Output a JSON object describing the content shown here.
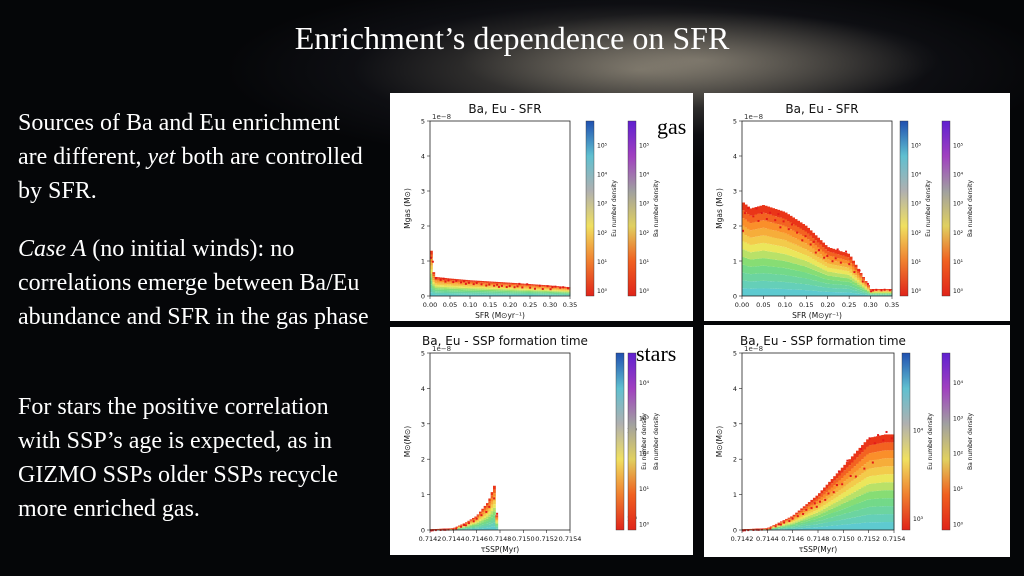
{
  "slide": {
    "title": "Enrichment’s dependence on SFR",
    "p1_a": "Sources of Ba and Eu enrichment are different, ",
    "p1_em": "yet",
    "p1_b": " both are controlled by SFR.",
    "p2_em": "Case A",
    "p2_rest": " (no initial winds): no correlations emerge between Ba/Eu abundance and SFR in the gas phase",
    "p3": "For stars the  positive correlation with SSP’s age is expected, as in GIZMO SSPs older SSPs recycle more enriched gas.",
    "label_gas": "gas",
    "label_stars": "stars"
  },
  "chart_data": [
    {
      "type": "scatter",
      "title": "Ba, Eu - SFR",
      "xlabel": "SFR (M⊙yr⁻¹)",
      "ylabel": "Mgas (M⊙)",
      "y_offset": "1e−8",
      "xlim": [
        0,
        0.35
      ],
      "ylim": [
        0,
        5
      ],
      "xticks": [
        "0.00",
        "0.05",
        "0.10",
        "0.15",
        "0.20",
        "0.25",
        "0.30",
        "0.35"
      ],
      "yticks": [
        "0",
        "1",
        "2",
        "3",
        "4",
        "5"
      ],
      "envelope": [
        [
          0,
          1.6
        ],
        [
          0.01,
          0.55
        ],
        [
          0.05,
          0.5
        ],
        [
          0.1,
          0.45
        ],
        [
          0.2,
          0.38
        ],
        [
          0.3,
          0.3
        ],
        [
          0.35,
          0.25
        ]
      ],
      "colorbars": [
        {
          "label": "Eu number density",
          "ticks": [
            "10⁰",
            "10¹",
            "10²",
            "10³",
            "10⁴",
            "10⁵"
          ]
        },
        {
          "label": "Ba number density",
          "ticks": [
            "10⁰",
            "10¹",
            "10²",
            "10³",
            "10⁴",
            "10⁵"
          ]
        }
      ]
    },
    {
      "type": "scatter",
      "title": "Ba, Eu - SFR",
      "xlabel": "SFR (M⊙yr⁻¹)",
      "ylabel": "Mgas (M⊙)",
      "y_offset": "1e−8",
      "xlim": [
        0,
        0.35
      ],
      "ylim": [
        0,
        5
      ],
      "xticks": [
        "0.00",
        "0.05",
        "0.10",
        "0.15",
        "0.20",
        "0.25",
        "0.30",
        "0.35"
      ],
      "yticks": [
        "0",
        "1",
        "2",
        "3",
        "4",
        "5"
      ],
      "envelope": [
        [
          0,
          2.7
        ],
        [
          0.02,
          2.5
        ],
        [
          0.05,
          2.6
        ],
        [
          0.1,
          2.4
        ],
        [
          0.15,
          2.0
        ],
        [
          0.2,
          1.4
        ],
        [
          0.25,
          1.2
        ],
        [
          0.3,
          0.2
        ]
      ],
      "colorbars": [
        {
          "label": "Eu number density",
          "ticks": [
            "10⁰",
            "10¹",
            "10²",
            "10³",
            "10⁴",
            "10⁵"
          ]
        },
        {
          "label": "Ba number density",
          "ticks": [
            "10⁰",
            "10¹",
            "10²",
            "10³",
            "10⁴",
            "10⁵"
          ]
        }
      ]
    },
    {
      "type": "scatter",
      "title": "Ba, Eu - SSP formation time",
      "xlabel": "τSSP(Myr)",
      "ylabel": "M⊙(M⊙)",
      "y_offset": "1e−8",
      "xlim": [
        0.7142,
        0.7154
      ],
      "ylim": [
        0,
        5
      ],
      "xticks": [
        "0.7142",
        "0.7144",
        "0.7146",
        "0.7148",
        "0.7150",
        "0.7152",
        "0.7154"
      ],
      "yticks": [
        "0",
        "1",
        "2",
        "3",
        "4",
        "5"
      ],
      "envelope": [
        [
          0.7142,
          0.02
        ],
        [
          0.7144,
          0.05
        ],
        [
          0.7145,
          0.2
        ],
        [
          0.7146,
          0.4
        ],
        [
          0.7147,
          0.8
        ],
        [
          0.71475,
          1.25
        ],
        [
          0.71478,
          0.0
        ]
      ],
      "colorbars": [
        {
          "label": "Eu number density",
          "ticks": [
            "10³",
            "10⁴"
          ]
        },
        {
          "label": "Ba number density",
          "ticks": [
            "10⁰",
            "10¹",
            "10²",
            "10³",
            "10⁴"
          ]
        }
      ]
    },
    {
      "type": "scatter",
      "title": "Ba, Eu - SSP formation time",
      "xlabel": "τSSP(Myr)",
      "ylabel": "M⊙(M⊙)",
      "y_offset": "1e−8",
      "xlim": [
        0.7142,
        0.7154
      ],
      "ylim": [
        0,
        5
      ],
      "xticks": [
        "0.7142",
        "0.7144",
        "0.7146",
        "0.7148",
        "0.7150",
        "0.7152",
        "0.7154"
      ],
      "yticks": [
        "0",
        "1",
        "2",
        "3",
        "4",
        "5"
      ],
      "envelope": [
        [
          0.7142,
          0.02
        ],
        [
          0.7144,
          0.05
        ],
        [
          0.7146,
          0.4
        ],
        [
          0.7148,
          1.0
        ],
        [
          0.715,
          1.8
        ],
        [
          0.7152,
          2.6
        ],
        [
          0.71533,
          2.7
        ]
      ],
      "colorbars": [
        {
          "label": "Eu number density",
          "ticks": [
            "10³",
            "10⁴"
          ]
        },
        {
          "label": "Ba number density",
          "ticks": [
            "10⁰",
            "10¹",
            "10²",
            "10³",
            "10⁴"
          ]
        }
      ]
    }
  ]
}
